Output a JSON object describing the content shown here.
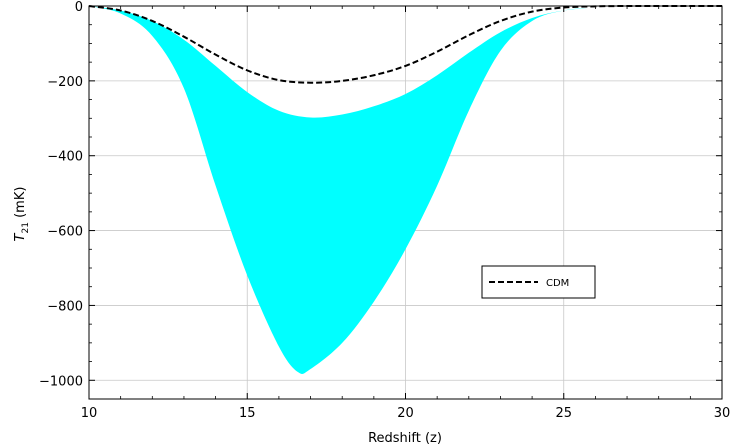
{
  "chart_data": {
    "type": "area",
    "xlabel": "Redshift (z)",
    "ylabel_main": "T",
    "ylabel_sub": "21",
    "ylabel_unit": " (mK)",
    "xlim": [
      10,
      30
    ],
    "ylim": [
      -1050,
      0
    ],
    "xticks": [
      10,
      15,
      20,
      25,
      30
    ],
    "xtick_labels": [
      "10",
      "15",
      "20",
      "25",
      "30"
    ],
    "yticks": [
      0,
      -200,
      -400,
      -600,
      -800,
      -1000
    ],
    "ytick_labels": [
      "0",
      "−200",
      "−400",
      "−600",
      "−800",
      "−1000"
    ],
    "grid": true,
    "legend_position": "lower-right",
    "band": {
      "color": "#00ffff",
      "upper": [
        [
          10,
          0
        ],
        [
          11,
          -12
        ],
        [
          12,
          -40
        ],
        [
          13,
          -90
        ],
        [
          14,
          -160
        ],
        [
          15,
          -230
        ],
        [
          16,
          -280
        ],
        [
          17,
          -298
        ],
        [
          18,
          -290
        ],
        [
          19,
          -268
        ],
        [
          20,
          -235
        ],
        [
          21,
          -185
        ],
        [
          22,
          -125
        ],
        [
          23,
          -70
        ],
        [
          24,
          -32
        ],
        [
          25,
          -12
        ],
        [
          26,
          -4
        ],
        [
          27,
          -1
        ],
        [
          28,
          0
        ],
        [
          29,
          0
        ],
        [
          30,
          0
        ]
      ],
      "lower": [
        [
          10,
          0
        ],
        [
          11,
          -20
        ],
        [
          12,
          -80
        ],
        [
          13,
          -220
        ],
        [
          14,
          -480
        ],
        [
          15,
          -720
        ],
        [
          16,
          -910
        ],
        [
          16.6,
          -978
        ],
        [
          17,
          -970
        ],
        [
          18,
          -900
        ],
        [
          19,
          -790
        ],
        [
          20,
          -650
        ],
        [
          21,
          -480
        ],
        [
          22,
          -280
        ],
        [
          23,
          -120
        ],
        [
          24,
          -40
        ],
        [
          25,
          -12
        ],
        [
          26,
          -4
        ],
        [
          27,
          -1
        ],
        [
          28,
          0
        ],
        [
          29,
          0
        ],
        [
          30,
          0
        ]
      ]
    },
    "series": [
      {
        "name": "CDM",
        "style": "dashed",
        "color": "#000000",
        "x": [
          10,
          11,
          12,
          13,
          14,
          15,
          16,
          17,
          18,
          19,
          20,
          21,
          22,
          23,
          24,
          25,
          26,
          27,
          28,
          29,
          30
        ],
        "y": [
          0,
          -12,
          -40,
          -82,
          -130,
          -172,
          -198,
          -205,
          -200,
          -185,
          -160,
          -122,
          -78,
          -40,
          -15,
          -4,
          -1,
          0,
          0,
          0,
          0
        ]
      }
    ]
  }
}
